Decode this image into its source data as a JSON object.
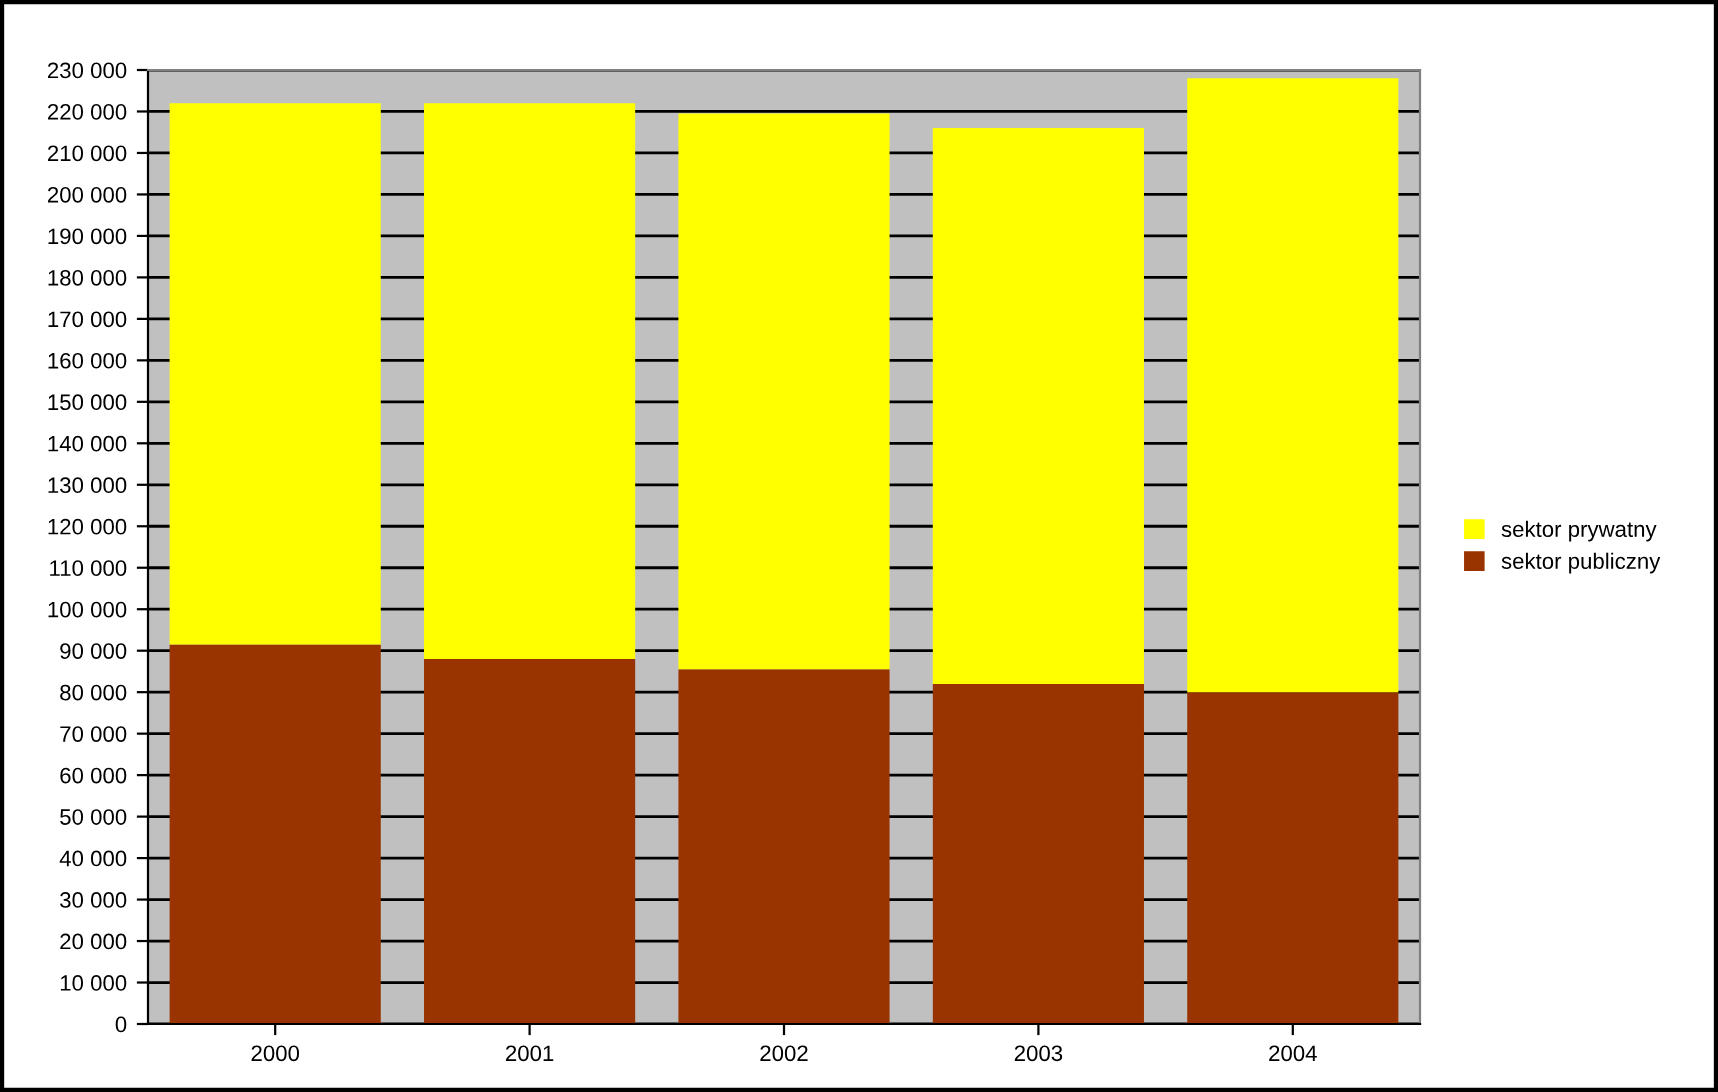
{
  "chart_data": {
    "type": "bar",
    "stacked": true,
    "categories": [
      "2000",
      "2001",
      "2002",
      "2003",
      "2004"
    ],
    "series": [
      {
        "name": "sektor publiczny",
        "color": "#993300",
        "values": [
          91500,
          88000,
          85500,
          82000,
          80000
        ]
      },
      {
        "name": "sektor prywatny",
        "color": "#ffff00",
        "values": [
          130500,
          134000,
          134000,
          134000,
          148000
        ]
      }
    ],
    "ylim": [
      0,
      230000
    ],
    "yticks": [
      {
        "value": 0,
        "label": "0"
      },
      {
        "value": 10000,
        "label": "10 000"
      },
      {
        "value": 20000,
        "label": "20 000"
      },
      {
        "value": 30000,
        "label": "30 000"
      },
      {
        "value": 40000,
        "label": "40 000"
      },
      {
        "value": 50000,
        "label": "50 000"
      },
      {
        "value": 60000,
        "label": "60 000"
      },
      {
        "value": 70000,
        "label": "70 000"
      },
      {
        "value": 80000,
        "label": "80 000"
      },
      {
        "value": 90000,
        "label": "90 000"
      },
      {
        "value": 100000,
        "label": "100 000"
      },
      {
        "value": 110000,
        "label": "110 000"
      },
      {
        "value": 120000,
        "label": "120 000"
      },
      {
        "value": 130000,
        "label": "130 000"
      },
      {
        "value": 140000,
        "label": "140 000"
      },
      {
        "value": 150000,
        "label": "150 000"
      },
      {
        "value": 160000,
        "label": "160 000"
      },
      {
        "value": 170000,
        "label": "170 000"
      },
      {
        "value": 180000,
        "label": "180 000"
      },
      {
        "value": 190000,
        "label": "190 000"
      },
      {
        "value": 200000,
        "label": "200 000"
      },
      {
        "value": 210000,
        "label": "210 000"
      },
      {
        "value": 220000,
        "label": "220 000"
      },
      {
        "value": 230000,
        "label": "230 000"
      }
    ],
    "grid": "y",
    "legend": "right"
  }
}
